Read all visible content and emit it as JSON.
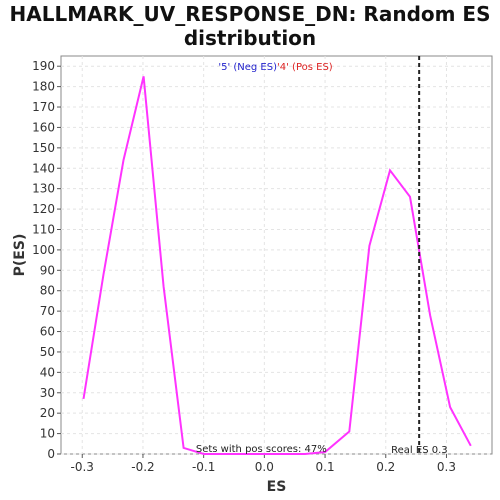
{
  "chart_data": {
    "type": "line",
    "title_line1": "HALLMARK_UV_RESPONSE_DN: Random ES",
    "title_line2": "distribution",
    "xlabel": "ES",
    "ylabel": "P(ES)",
    "xlim": [
      -0.335,
      0.375
    ],
    "ylim": [
      0,
      195
    ],
    "x_ticks": [
      -0.3,
      -0.2,
      -0.1,
      0.0,
      0.1,
      0.2,
      0.3
    ],
    "x_tick_labels": [
      "-0.3",
      "-0.2",
      "-0.1",
      "0.0",
      "0.1",
      "0.2",
      "0.3"
    ],
    "y_ticks": [
      0,
      10,
      20,
      30,
      40,
      50,
      60,
      70,
      80,
      90,
      100,
      110,
      120,
      130,
      140,
      150,
      160,
      170,
      180,
      190
    ],
    "grid": true,
    "series": [
      {
        "color": "#ff33ff",
        "x": [
          -0.298,
          -0.265,
          -0.232,
          -0.199,
          -0.166,
          -0.133,
          -0.1,
          -0.067,
          -0.034,
          0.0,
          0.034,
          0.067,
          0.1,
          0.14,
          0.173,
          0.207,
          0.24,
          0.273,
          0.306,
          0.34
        ],
        "y": [
          27,
          88,
          144,
          185,
          82,
          3,
          0,
          0,
          0,
          0,
          0,
          0,
          1,
          11,
          102,
          139,
          126,
          68,
          23,
          4
        ]
      }
    ],
    "real_es": 0.255,
    "legend": {
      "neg_text": "'5' (Neg ES)",
      "pos_text": "'4' (Pos ES)",
      "placement": "top-center"
    },
    "annotations": {
      "pos_scores": "Sets with pos scores: 47%",
      "real_es_label": "Real ES 0.3"
    }
  }
}
